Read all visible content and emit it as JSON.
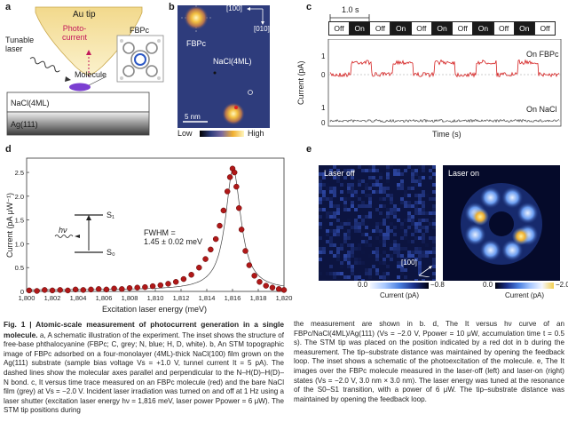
{
  "panel_labels": {
    "a": "a",
    "b": "b",
    "c": "c",
    "d": "d",
    "e": "e"
  },
  "panel_a": {
    "au_tip": "Au tip",
    "photo_current": "Photo-\ncurrent",
    "tunable_laser": "Tunable\nlaser",
    "molecule": "Molecule",
    "fbpc": "FBPc",
    "nacl": "NaCl(4ML)",
    "ag": "Ag(111)"
  },
  "panel_b": {
    "fbpc": "FBPc",
    "nacl": "NaCl(4ML)",
    "dir_100": "[100]",
    "dir_010": "[010]",
    "scalebar": "5 nm",
    "low": "Low",
    "high": "High"
  },
  "panel_c": {
    "time_label": "1.0 s",
    "switch_states": [
      "Off",
      "On",
      "Off",
      "On",
      "Off",
      "On",
      "Off",
      "On",
      "Off",
      "On",
      "Off"
    ],
    "ylabel": "Current (pA)",
    "xlabel": "Time (s)",
    "on_fbpc": "On FBPc",
    "on_nacl": "On NaCl",
    "yticks_top": [
      "1",
      "0"
    ],
    "yticks_bottom": [
      "1",
      "0"
    ],
    "colors": {
      "fbpc": "#d42020",
      "nacl": "#333333"
    }
  },
  "panel_d": {
    "ylabel": "Current (pA μW⁻¹)",
    "xlabel": "Excitation laser energy (meV)",
    "fwhm_line1": "FWHM =",
    "fwhm_line2": "1.45 ± 0.02 meV",
    "hv": "hν",
    "s1": "S₁",
    "s0": "S₀",
    "xticks": [
      "1,800",
      "1,802",
      "1,804",
      "1,806",
      "1,808",
      "1,810",
      "1,812",
      "1,814",
      "1,816",
      "1,818",
      "1,820"
    ],
    "yticks": [
      "0",
      "0.5",
      "1.0",
      "1.5",
      "2.0",
      "2.5"
    ],
    "marker_color": "#b01818"
  },
  "chart_data": {
    "type": "scatter",
    "title": "",
    "xlabel": "Excitation laser energy (meV)",
    "ylabel": "Current (pA μW⁻¹)",
    "xlim": [
      1800,
      1820
    ],
    "ylim": [
      0,
      2.8
    ],
    "x": [
      1800.2,
      1800.8,
      1801.4,
      1802.0,
      1802.6,
      1803.2,
      1803.8,
      1804.4,
      1805.0,
      1805.6,
      1806.2,
      1806.8,
      1807.4,
      1808.0,
      1808.6,
      1809.2,
      1809.8,
      1810.4,
      1811.0,
      1811.6,
      1812.2,
      1812.8,
      1813.4,
      1813.9,
      1814.3,
      1814.7,
      1815.0,
      1815.3,
      1815.6,
      1815.8,
      1816.0,
      1816.15,
      1816.3,
      1816.5,
      1816.7,
      1817.0,
      1817.3,
      1817.7,
      1818.1,
      1818.6,
      1819.1,
      1819.6,
      1820.0
    ],
    "y": [
      0.02,
      0.01,
      0.03,
      0.02,
      0.03,
      0.02,
      0.04,
      0.03,
      0.04,
      0.05,
      0.04,
      0.06,
      0.05,
      0.07,
      0.08,
      0.09,
      0.11,
      0.13,
      0.16,
      0.2,
      0.26,
      0.35,
      0.5,
      0.68,
      0.88,
      1.1,
      1.38,
      1.7,
      2.1,
      2.4,
      2.58,
      2.5,
      2.2,
      1.75,
      1.3,
      0.85,
      0.55,
      0.33,
      0.2,
      0.12,
      0.08,
      0.05,
      0.03
    ]
  },
  "panel_e": {
    "laser_off": "Laser off",
    "laser_on": "Laser on",
    "dir": "[100]",
    "off_ticks": [
      "0.0",
      "−0.8"
    ],
    "on_ticks": [
      "0.0",
      "−2.0"
    ],
    "off_cbar": "Current (pA)",
    "on_cbar": "Current (pA)"
  },
  "caption_left": {
    "title": "Fig. 1 | Atomic-scale measurement of photocurrent generation in a single molecule.",
    "body": " a, A schematic illustration of the experiment. The inset shows the structure of free-base phthalocyanine (FBPc; C, grey; N, blue; H, D, white). b, An STM topographic image of FBPc adsorbed on a four-monolayer (4ML)-thick NaCl(100) film grown on the Ag(111) substrate (sample bias voltage Vs = +1.0 V, tunnel current It = 5 pA). The dashed lines show the molecular axes parallel and perpendicular to the N–H(D)–H(D)–N bond. c, It versus time trace measured on an FBPc molecule (red) and the bare NaCl film (grey) at Vs = −2.0 V. Incident laser irradiation was turned on and off at 1 Hz using a laser shutter (excitation laser energy hν = 1,816 meV, laser power Ppower = 6 μW). The STM tip positions during"
  },
  "caption_right": {
    "body": "the measurement are shown in b. d, The It versus hν curve of an FBPc/NaCl(4ML)/Ag(111) (Vs = −2.0 V, Ppower = 10 μW, accumulation time t = 0.5 s). The STM tip was placed on the position indicated by a red dot in b during the measurement. The tip–substrate distance was maintained by opening the feedback loop. The inset shows a schematic of the photoexcitation of the molecule. e, The It images over the FBPc molecule measured in the laser-off (left) and laser-on (right) states (Vs = −2.0 V, 3.0 nm × 3.0 nm). The laser energy was tuned at the resonance of the S0–S1 transition, with a power of 6 μW. The tip–substrate distance was maintained by opening the feedback loop."
  }
}
